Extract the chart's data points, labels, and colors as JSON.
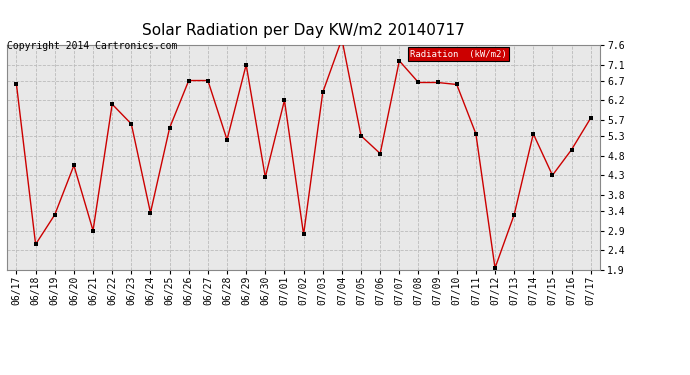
{
  "title": "Solar Radiation per Day KW/m2 20140717",
  "copyright": "Copyright 2014 Cartronics.com",
  "legend_label": "Radiation  (kW/m2)",
  "dates": [
    "06/17",
    "06/18",
    "06/19",
    "06/20",
    "06/21",
    "06/22",
    "06/23",
    "06/24",
    "06/25",
    "06/26",
    "06/27",
    "06/28",
    "06/29",
    "06/30",
    "07/01",
    "07/02",
    "07/03",
    "07/04",
    "07/05",
    "07/06",
    "07/07",
    "07/08",
    "07/09",
    "07/10",
    "07/11",
    "07/12",
    "07/13",
    "07/14",
    "07/15",
    "07/16",
    "07/17"
  ],
  "values": [
    6.6,
    2.55,
    3.3,
    4.55,
    2.9,
    6.1,
    5.6,
    3.35,
    5.5,
    6.7,
    6.7,
    5.2,
    7.1,
    4.25,
    6.2,
    2.8,
    6.4,
    7.75,
    5.3,
    4.85,
    7.2,
    6.65,
    6.65,
    6.6,
    5.35,
    1.95,
    3.3,
    5.35,
    4.3,
    4.95,
    5.75
  ],
  "ylim_min": 1.9,
  "ylim_max": 7.6,
  "yticks": [
    1.9,
    2.4,
    2.9,
    3.4,
    3.8,
    4.3,
    4.8,
    5.3,
    5.7,
    6.2,
    6.7,
    7.1,
    7.6
  ],
  "line_color": "#cc0000",
  "marker_color": "black",
  "grid_color": "#bbbbbb",
  "bg_color": "#ffffff",
  "plot_bg_color": "#e8e8e8",
  "legend_bg": "#cc0000",
  "legend_text_color": "#ffffff",
  "title_fontsize": 11,
  "copyright_fontsize": 7,
  "tick_fontsize": 7
}
